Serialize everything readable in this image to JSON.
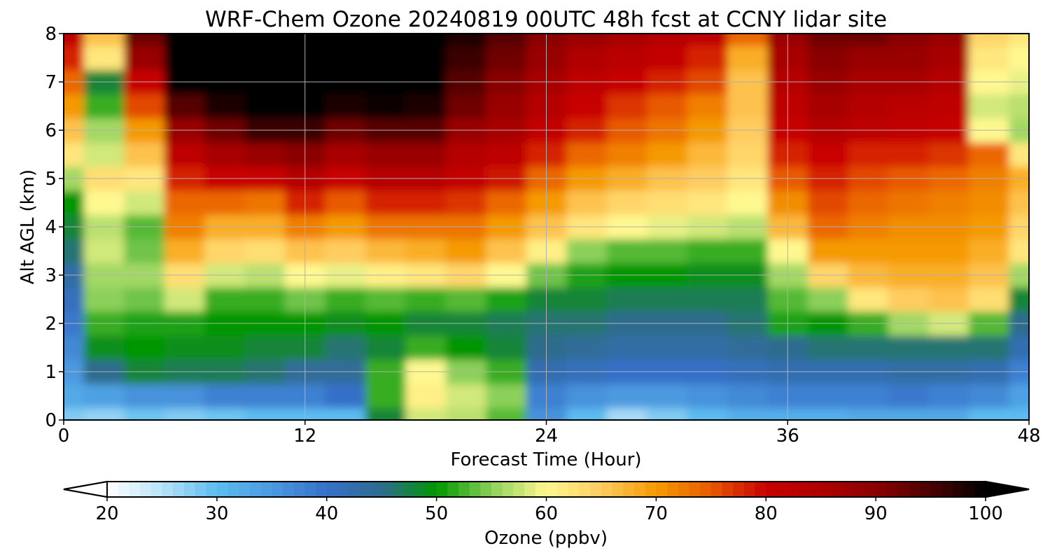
{
  "chart_data": {
    "type": "heatmap",
    "title": "WRF-Chem Ozone  20240819 00UTC 48h fcst at CCNY lidar site",
    "xlabel": "Forecast Time (Hour)",
    "ylabel": "Alt AGL (km)",
    "xlim": [
      0,
      48
    ],
    "ylim": [
      0,
      8
    ],
    "x_ticks": [
      "0",
      "12",
      "24",
      "36",
      "48"
    ],
    "y_ticks": [
      "0",
      "1",
      "2",
      "3",
      "4",
      "5",
      "6",
      "7",
      "8"
    ],
    "grid": true,
    "colorbar": {
      "label": "Ozone  (ppbv)",
      "range": [
        20,
        100
      ],
      "ticks": [
        "20",
        "30",
        "40",
        "50",
        "60",
        "70",
        "80",
        "90",
        "100"
      ],
      "extend": "both",
      "under_color": "#ffffff",
      "over_color": "#000000",
      "colormap": [
        [
          20,
          "#ffffff"
        ],
        [
          25,
          "#b8e2f8"
        ],
        [
          30,
          "#5cbcf0"
        ],
        [
          35,
          "#4b9ae0"
        ],
        [
          40,
          "#3670c8"
        ],
        [
          45,
          "#2e6c8e"
        ],
        [
          50,
          "#009600"
        ],
        [
          55,
          "#8cd05a"
        ],
        [
          60,
          "#fff890"
        ],
        [
          65,
          "#ffcc60"
        ],
        [
          70,
          "#f59a00"
        ],
        [
          75,
          "#e85a00"
        ],
        [
          80,
          "#c80000"
        ],
        [
          85,
          "#b00000"
        ],
        [
          90,
          "#8a0000"
        ],
        [
          95,
          "#4a0000"
        ],
        [
          100,
          "#000000"
        ]
      ]
    },
    "hours": [
      0,
      2,
      4,
      6,
      8,
      10,
      12,
      14,
      16,
      18,
      20,
      22,
      24,
      26,
      28,
      30,
      32,
      34,
      36,
      38,
      40,
      42,
      44,
      46,
      48
    ],
    "altitudes_km": [
      0,
      0.5,
      1,
      1.5,
      2,
      2.5,
      3,
      3.5,
      4,
      4.5,
      5,
      5.5,
      6,
      6.5,
      7,
      7.5,
      8
    ],
    "ozone_ppbv": [
      [
        28,
        33,
        35,
        37,
        39,
        41,
        43,
        46,
        48,
        50,
        56,
        62,
        66,
        70,
        74,
        78,
        82
      ],
      [
        27,
        34,
        45,
        49,
        52,
        55,
        56,
        58,
        57,
        60,
        63,
        58,
        56,
        52,
        48,
        62,
        66
      ],
      [
        29,
        36,
        48,
        50,
        51,
        54,
        56,
        54,
        53,
        58,
        62,
        66,
        70,
        76,
        80,
        88,
        92
      ],
      [
        28,
        36,
        47,
        49,
        51,
        58,
        63,
        68,
        72,
        74,
        78,
        82,
        88,
        94,
        100,
        102,
        102
      ],
      [
        29,
        38,
        47,
        49,
        50,
        52,
        58,
        64,
        68,
        74,
        80,
        86,
        92,
        98,
        102,
        103,
        103
      ],
      [
        30,
        38,
        46,
        48,
        50,
        52,
        57,
        63,
        68,
        73,
        80,
        88,
        96,
        100,
        102,
        103,
        103
      ],
      [
        30,
        38,
        44,
        48,
        50,
        54,
        60,
        66,
        72,
        78,
        84,
        90,
        96,
        100,
        102,
        103,
        103
      ],
      [
        30,
        40,
        44,
        46,
        49,
        52,
        59,
        65,
        70,
        75,
        80,
        86,
        92,
        98,
        102,
        103,
        103
      ],
      [
        48,
        52,
        52,
        48,
        50,
        53,
        61,
        67,
        73,
        78,
        84,
        88,
        94,
        99,
        102,
        103,
        103
      ],
      [
        58,
        61,
        60,
        52,
        48,
        52,
        62,
        68,
        73,
        78,
        84,
        88,
        94,
        98,
        100,
        102,
        103
      ],
      [
        57,
        58,
        55,
        50,
        48,
        53,
        64,
        70,
        73,
        77,
        81,
        84,
        88,
        92,
        94,
        96,
        98
      ],
      [
        53,
        55,
        52,
        48,
        47,
        51,
        60,
        66,
        70,
        74,
        79,
        82,
        86,
        88,
        90,
        92,
        94
      ],
      [
        36,
        38,
        42,
        45,
        46,
        48,
        54,
        61,
        66,
        70,
        74,
        78,
        81,
        84,
        86,
        88,
        90
      ],
      [
        30,
        36,
        41,
        44,
        46,
        48,
        51,
        55,
        62,
        66,
        70,
        74,
        78,
        80,
        82,
        85,
        88
      ],
      [
        26,
        35,
        40,
        43,
        45,
        47,
        50,
        53,
        60,
        64,
        68,
        72,
        75,
        77,
        80,
        83,
        86
      ],
      [
        28,
        35,
        40,
        43,
        45,
        47,
        50,
        53,
        59,
        63,
        66,
        70,
        73,
        75,
        78,
        81,
        84
      ],
      [
        30,
        36,
        40,
        43,
        45,
        47,
        49,
        52,
        58,
        62,
        65,
        67,
        70,
        72,
        76,
        78,
        82
      ],
      [
        32,
        37,
        41,
        44,
        46,
        47,
        49,
        52,
        57,
        60,
        62,
        64,
        65,
        66,
        66,
        68,
        74
      ],
      [
        32,
        38,
        42,
        45,
        51,
        53,
        56,
        60,
        67,
        71,
        75,
        78,
        80,
        82,
        84,
        86,
        88
      ],
      [
        32,
        38,
        42,
        46,
        50,
        55,
        64,
        70,
        74,
        76,
        78,
        80,
        84,
        86,
        88,
        90,
        92
      ],
      [
        33,
        38,
        42,
        46,
        52,
        62,
        67,
        70,
        72,
        74,
        76,
        78,
        82,
        84,
        86,
        88,
        92
      ],
      [
        33,
        39,
        43,
        46,
        56,
        65,
        68,
        70,
        71,
        73,
        75,
        78,
        81,
        83,
        86,
        88,
        90
      ],
      [
        33,
        38,
        43,
        46,
        58,
        66,
        68,
        70,
        71,
        72,
        74,
        77,
        80,
        82,
        84,
        86,
        88
      ],
      [
        30,
        37,
        42,
        46,
        53,
        63,
        66,
        68,
        70,
        71,
        72,
        74,
        60,
        58,
        60,
        62,
        64
      ],
      [
        30,
        34,
        38,
        42,
        45,
        48,
        56,
        62,
        64,
        66,
        68,
        62,
        56,
        57,
        59,
        60,
        62
      ]
    ]
  }
}
